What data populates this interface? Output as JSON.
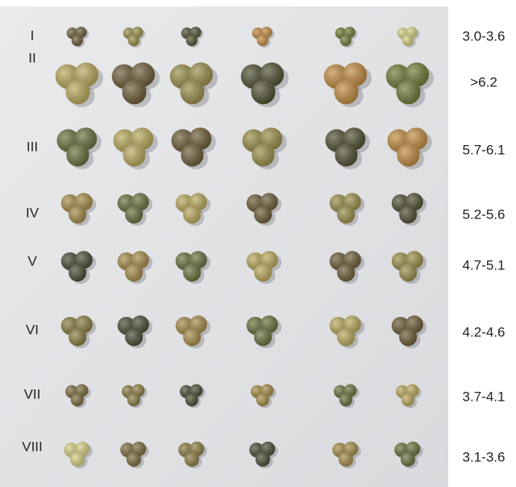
{
  "rows": [
    {
      "label": "I",
      "range": "3.0-3.6"
    },
    {
      "label": "II",
      "range": ">6.2"
    },
    {
      "label": "III",
      "range": "5.7-6.1"
    },
    {
      "label": "IV",
      "range": "5.2-5.6"
    },
    {
      "label": "V",
      "range": "4.7-5.1"
    },
    {
      "label": "VI",
      "range": "4.2-4.6"
    },
    {
      "label": "VII",
      "range": "3.7-4.1"
    },
    {
      "label": "VIII",
      "range": "3.1-3.6"
    }
  ]
}
